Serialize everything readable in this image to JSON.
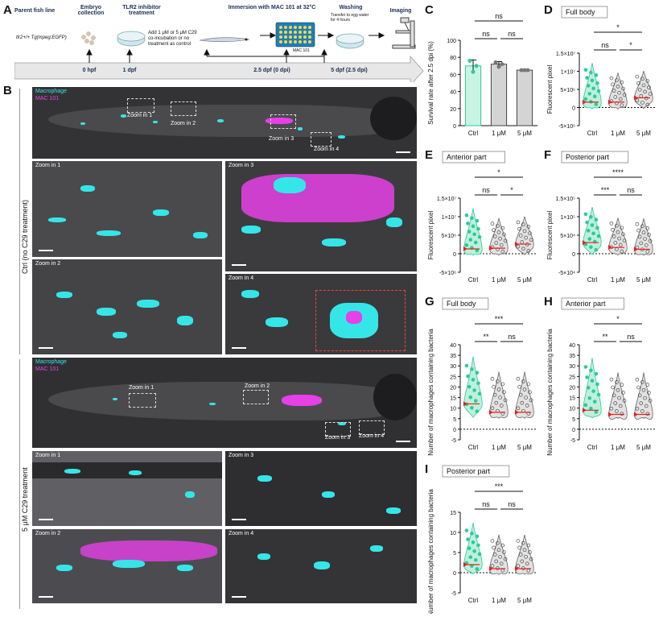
{
  "panels": {
    "A": "A",
    "B": "B",
    "C": "C",
    "D": "D",
    "E": "E",
    "F": "F",
    "G": "G",
    "H": "H",
    "I": "I"
  },
  "workflow": {
    "steps": [
      {
        "title": "Parent fish line",
        "sub": "tlr2+/+ Tg(mpeg:EGFP)"
      },
      {
        "title": "Embryo collection",
        "sub": ""
      },
      {
        "title": "TLR2 inhibitor treatment",
        "sub": "Add 1 μM or 5 μM C29 co-incubation or no treatment as control"
      },
      {
        "title": "Immersion with MAC 101 at 32°C",
        "sub": "MAC 101"
      },
      {
        "title": "Washing",
        "sub": "Transfer to egg water for 4 hours"
      },
      {
        "title": "Imaging",
        "sub": ""
      }
    ],
    "timeline": [
      "0 hpf",
      "1 dpf",
      "2.5 dpf (0 dpi)",
      "5 dpf (2.5 dpi)"
    ]
  },
  "microscopy": {
    "legend_macrophage": "Macrophage",
    "legend_mac101": "MAC 101",
    "ctrl_title": "Ctrl (no C29 treatment)",
    "c29_title": "5 μM C29 treatment",
    "zoom1": "Zoom in 1",
    "zoom2": "Zoom in 2",
    "zoom3": "Zoom in 3",
    "zoom4": "Zoom in 4"
  },
  "colors": {
    "cyan": "#35e6e8",
    "magenta": "#e640e6",
    "green": "#2ec99a",
    "red": "#e8201c",
    "gray": "#9a9a9a"
  },
  "chart_data": [
    {
      "id": "C",
      "type": "bar",
      "title": "",
      "ylabel": "Survival rate after 2.5 dpi (%)",
      "categories": [
        "Ctrl",
        "1 μM",
        "5 μM"
      ],
      "values": [
        70,
        72,
        65
      ],
      "errors": [
        7,
        3,
        1
      ],
      "points": [
        [
          76,
          63,
          70
        ],
        [
          74,
          69,
          72
        ],
        [
          65,
          65,
          65
        ]
      ],
      "ylim": [
        0,
        100
      ],
      "yticks": [
        "0",
        "20",
        "40",
        "60",
        "80",
        "100"
      ],
      "sig": [
        {
          "a": 0,
          "b": 2,
          "text": "ns"
        },
        {
          "a": 0,
          "b": 1,
          "text": "ns"
        },
        {
          "a": 1,
          "b": 2,
          "text": "ns"
        }
      ]
    },
    {
      "id": "D",
      "type": "violin",
      "title": "Full body",
      "ylabel": "Fluorescent pixel",
      "categories": [
        "Ctrl",
        "1 μM",
        "5 μM"
      ],
      "medians": [
        1500000,
        1500000,
        2700000
      ],
      "ylim": [
        -5000000,
        15000000
      ],
      "yticks": [
        "-5×10⁶",
        "0",
        "5×10⁶",
        "1×10⁷",
        "1.5×10⁷"
      ],
      "sig": [
        {
          "a": 0,
          "b": 2,
          "text": "*"
        },
        {
          "a": 0,
          "b": 1,
          "text": "ns"
        },
        {
          "a": 1,
          "b": 2,
          "text": "*"
        }
      ]
    },
    {
      "id": "E",
      "type": "violin",
      "title": "Anterior part",
      "ylabel": "Fluorescent pixel",
      "categories": [
        "Ctrl",
        "1 μM",
        "5 μM"
      ],
      "medians": [
        1300000,
        1500000,
        2600000
      ],
      "ylim": [
        -5000000,
        15000000
      ],
      "yticks": [
        "-5×10⁶",
        "0",
        "5×10⁶",
        "1×10⁷",
        "1.5×10⁷"
      ],
      "sig": [
        {
          "a": 0,
          "b": 2,
          "text": "*"
        },
        {
          "a": 0,
          "b": 1,
          "text": "ns"
        },
        {
          "a": 1,
          "b": 2,
          "text": "*"
        }
      ]
    },
    {
      "id": "F",
      "type": "violin",
      "title": "Posterior part",
      "ylabel": "Fluorescent pixel",
      "categories": [
        "Ctrl",
        "1 μM",
        "5 μM"
      ],
      "medians": [
        30000,
        17000,
        12000
      ],
      "ylim": [
        -50000,
        150000
      ],
      "yticks": [
        "-5×10⁴",
        "0",
        "5×10⁴",
        "1×10⁵",
        "1.5×10⁵"
      ],
      "sig": [
        {
          "a": 0,
          "b": 2,
          "text": "****"
        },
        {
          "a": 0,
          "b": 1,
          "text": "***"
        },
        {
          "a": 1,
          "b": 2,
          "text": "ns"
        }
      ]
    },
    {
      "id": "G",
      "type": "violin",
      "title": "Full body",
      "ylabel": "Number of macrophages containing bacteria",
      "categories": [
        "Ctrl",
        "1 μM",
        "5 μM"
      ],
      "medians": [
        12,
        8,
        8
      ],
      "ylim": [
        -5,
        40
      ],
      "yticks": [
        "-5",
        "0",
        "5",
        "10",
        "15",
        "20",
        "25",
        "30",
        "35",
        "40"
      ],
      "sig": [
        {
          "a": 0,
          "b": 2,
          "text": "***"
        },
        {
          "a": 0,
          "b": 1,
          "text": "**"
        },
        {
          "a": 1,
          "b": 2,
          "text": "ns"
        }
      ]
    },
    {
      "id": "H",
      "type": "violin",
      "title": "Anterior part",
      "ylabel": "Number of macrophages containing bacteria",
      "categories": [
        "Ctrl",
        "1 μM",
        "5 μM"
      ],
      "medians": [
        9,
        7,
        7
      ],
      "ylim": [
        -5,
        40
      ],
      "yticks": [
        "-5",
        "0",
        "5",
        "10",
        "15",
        "20",
        "25",
        "30",
        "35",
        "40"
      ],
      "sig": [
        {
          "a": 0,
          "b": 2,
          "text": "*"
        },
        {
          "a": 0,
          "b": 1,
          "text": "**"
        },
        {
          "a": 1,
          "b": 2,
          "text": "ns"
        }
      ]
    },
    {
      "id": "I",
      "type": "violin",
      "title": "Posterior part",
      "ylabel": "Number of macrophages containing bacteria",
      "categories": [
        "Ctrl",
        "1 μM",
        "5 μM"
      ],
      "medians": [
        2,
        1,
        1
      ],
      "ylim": [
        -5,
        15
      ],
      "yticks": [
        "-5",
        "0",
        "5",
        "10",
        "15"
      ],
      "sig": [
        {
          "a": 0,
          "b": 2,
          "text": "***"
        },
        {
          "a": 0,
          "b": 1,
          "text": "ns"
        },
        {
          "a": 1,
          "b": 2,
          "text": "ns"
        }
      ]
    }
  ]
}
